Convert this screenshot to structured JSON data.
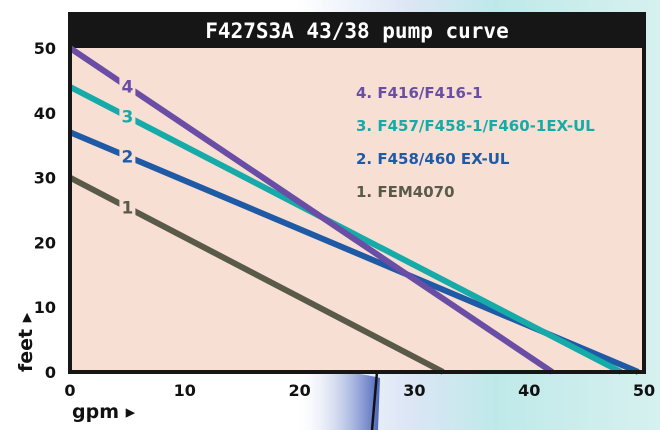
{
  "chart_data": {
    "type": "line",
    "title": "F427S3A 43/38 pump curve",
    "xlabel": "gpm ▸",
    "ylabel": "feet ▸",
    "xlim": [
      0,
      50
    ],
    "ylim": [
      0,
      50
    ],
    "xticks": [
      "0",
      "10",
      "20",
      "30",
      "40",
      "50"
    ],
    "yticks": [
      "0",
      "10",
      "20",
      "30",
      "40",
      "50"
    ],
    "grid": false,
    "legend_position": "top-right",
    "series": [
      {
        "id": "1",
        "name": "1. FEM4070",
        "color": "#5a5a48",
        "x": [
          0,
          32.5
        ],
        "y": [
          30,
          0
        ]
      },
      {
        "id": "2",
        "name": "2. F458/460 EX-UL",
        "color": "#1f5aa6",
        "x": [
          0,
          49.5
        ],
        "y": [
          37,
          0
        ]
      },
      {
        "id": "3",
        "name": "3. F457/F458-1/F460-1EX-UL",
        "color": "#16aaa8",
        "x": [
          0,
          48
        ],
        "y": [
          44,
          0
        ]
      },
      {
        "id": "4",
        "name": "4. F416/F416-1",
        "color": "#6a4ea6",
        "x": [
          0,
          42
        ],
        "y": [
          50,
          0
        ]
      }
    ],
    "legend_order": [
      "4",
      "3",
      "2",
      "1"
    ]
  },
  "style": {
    "plot_background": "#f8dfd3",
    "frame_color": "#161616",
    "title_background": "#161616",
    "title_color": "#ffffff",
    "page_background_light": "#cdeeec",
    "page_background_accent": "#3a4fa0"
  }
}
